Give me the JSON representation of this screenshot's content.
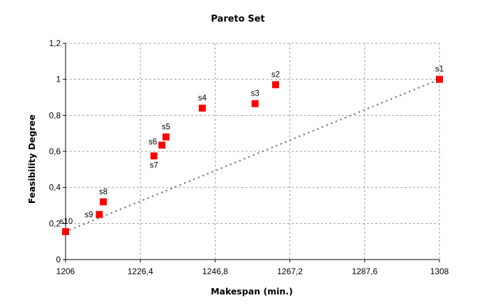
{
  "chart_data": {
    "type": "scatter",
    "title": "Pareto Set",
    "xlabel": "Makespan (min.)",
    "ylabel": "Feasibility Degree",
    "xlim": [
      1206,
      1308
    ],
    "ylim": [
      0,
      1.2
    ],
    "xticks": [
      1206,
      1226.4,
      1246.8,
      1267.2,
      1287.6,
      1308
    ],
    "xtick_labels": [
      "1206",
      "1226,4",
      "1246,8",
      "1267,2",
      "1287,6",
      "1308"
    ],
    "yticks": [
      0,
      0.2,
      0.4,
      0.6,
      0.8,
      1,
      1.2
    ],
    "ytick_labels": [
      "0",
      "0,2",
      "0,4",
      "0,6",
      "0,8",
      "1",
      "1,2"
    ],
    "grid": true,
    "marker_color": "#ff0000",
    "trend_color": "#808080",
    "points": [
      {
        "label": "s1",
        "x": 1308,
        "y": 1.0
      },
      {
        "label": "s2",
        "x": 1263.3,
        "y": 0.97
      },
      {
        "label": "s3",
        "x": 1257.7,
        "y": 0.865
      },
      {
        "label": "s4",
        "x": 1243.3,
        "y": 0.84
      },
      {
        "label": "s5",
        "x": 1233.4,
        "y": 0.68
      },
      {
        "label": "s6",
        "x": 1232.3,
        "y": 0.635
      },
      {
        "label": "s7",
        "x": 1230.1,
        "y": 0.575
      },
      {
        "label": "s8",
        "x": 1216.3,
        "y": 0.32
      },
      {
        "label": "s9",
        "x": 1215.2,
        "y": 0.25
      },
      {
        "label": "s10",
        "x": 1206,
        "y": 0.155
      }
    ],
    "trendline": {
      "x": [
        1206,
        1308
      ],
      "y": [
        0.155,
        1.0
      ]
    }
  }
}
